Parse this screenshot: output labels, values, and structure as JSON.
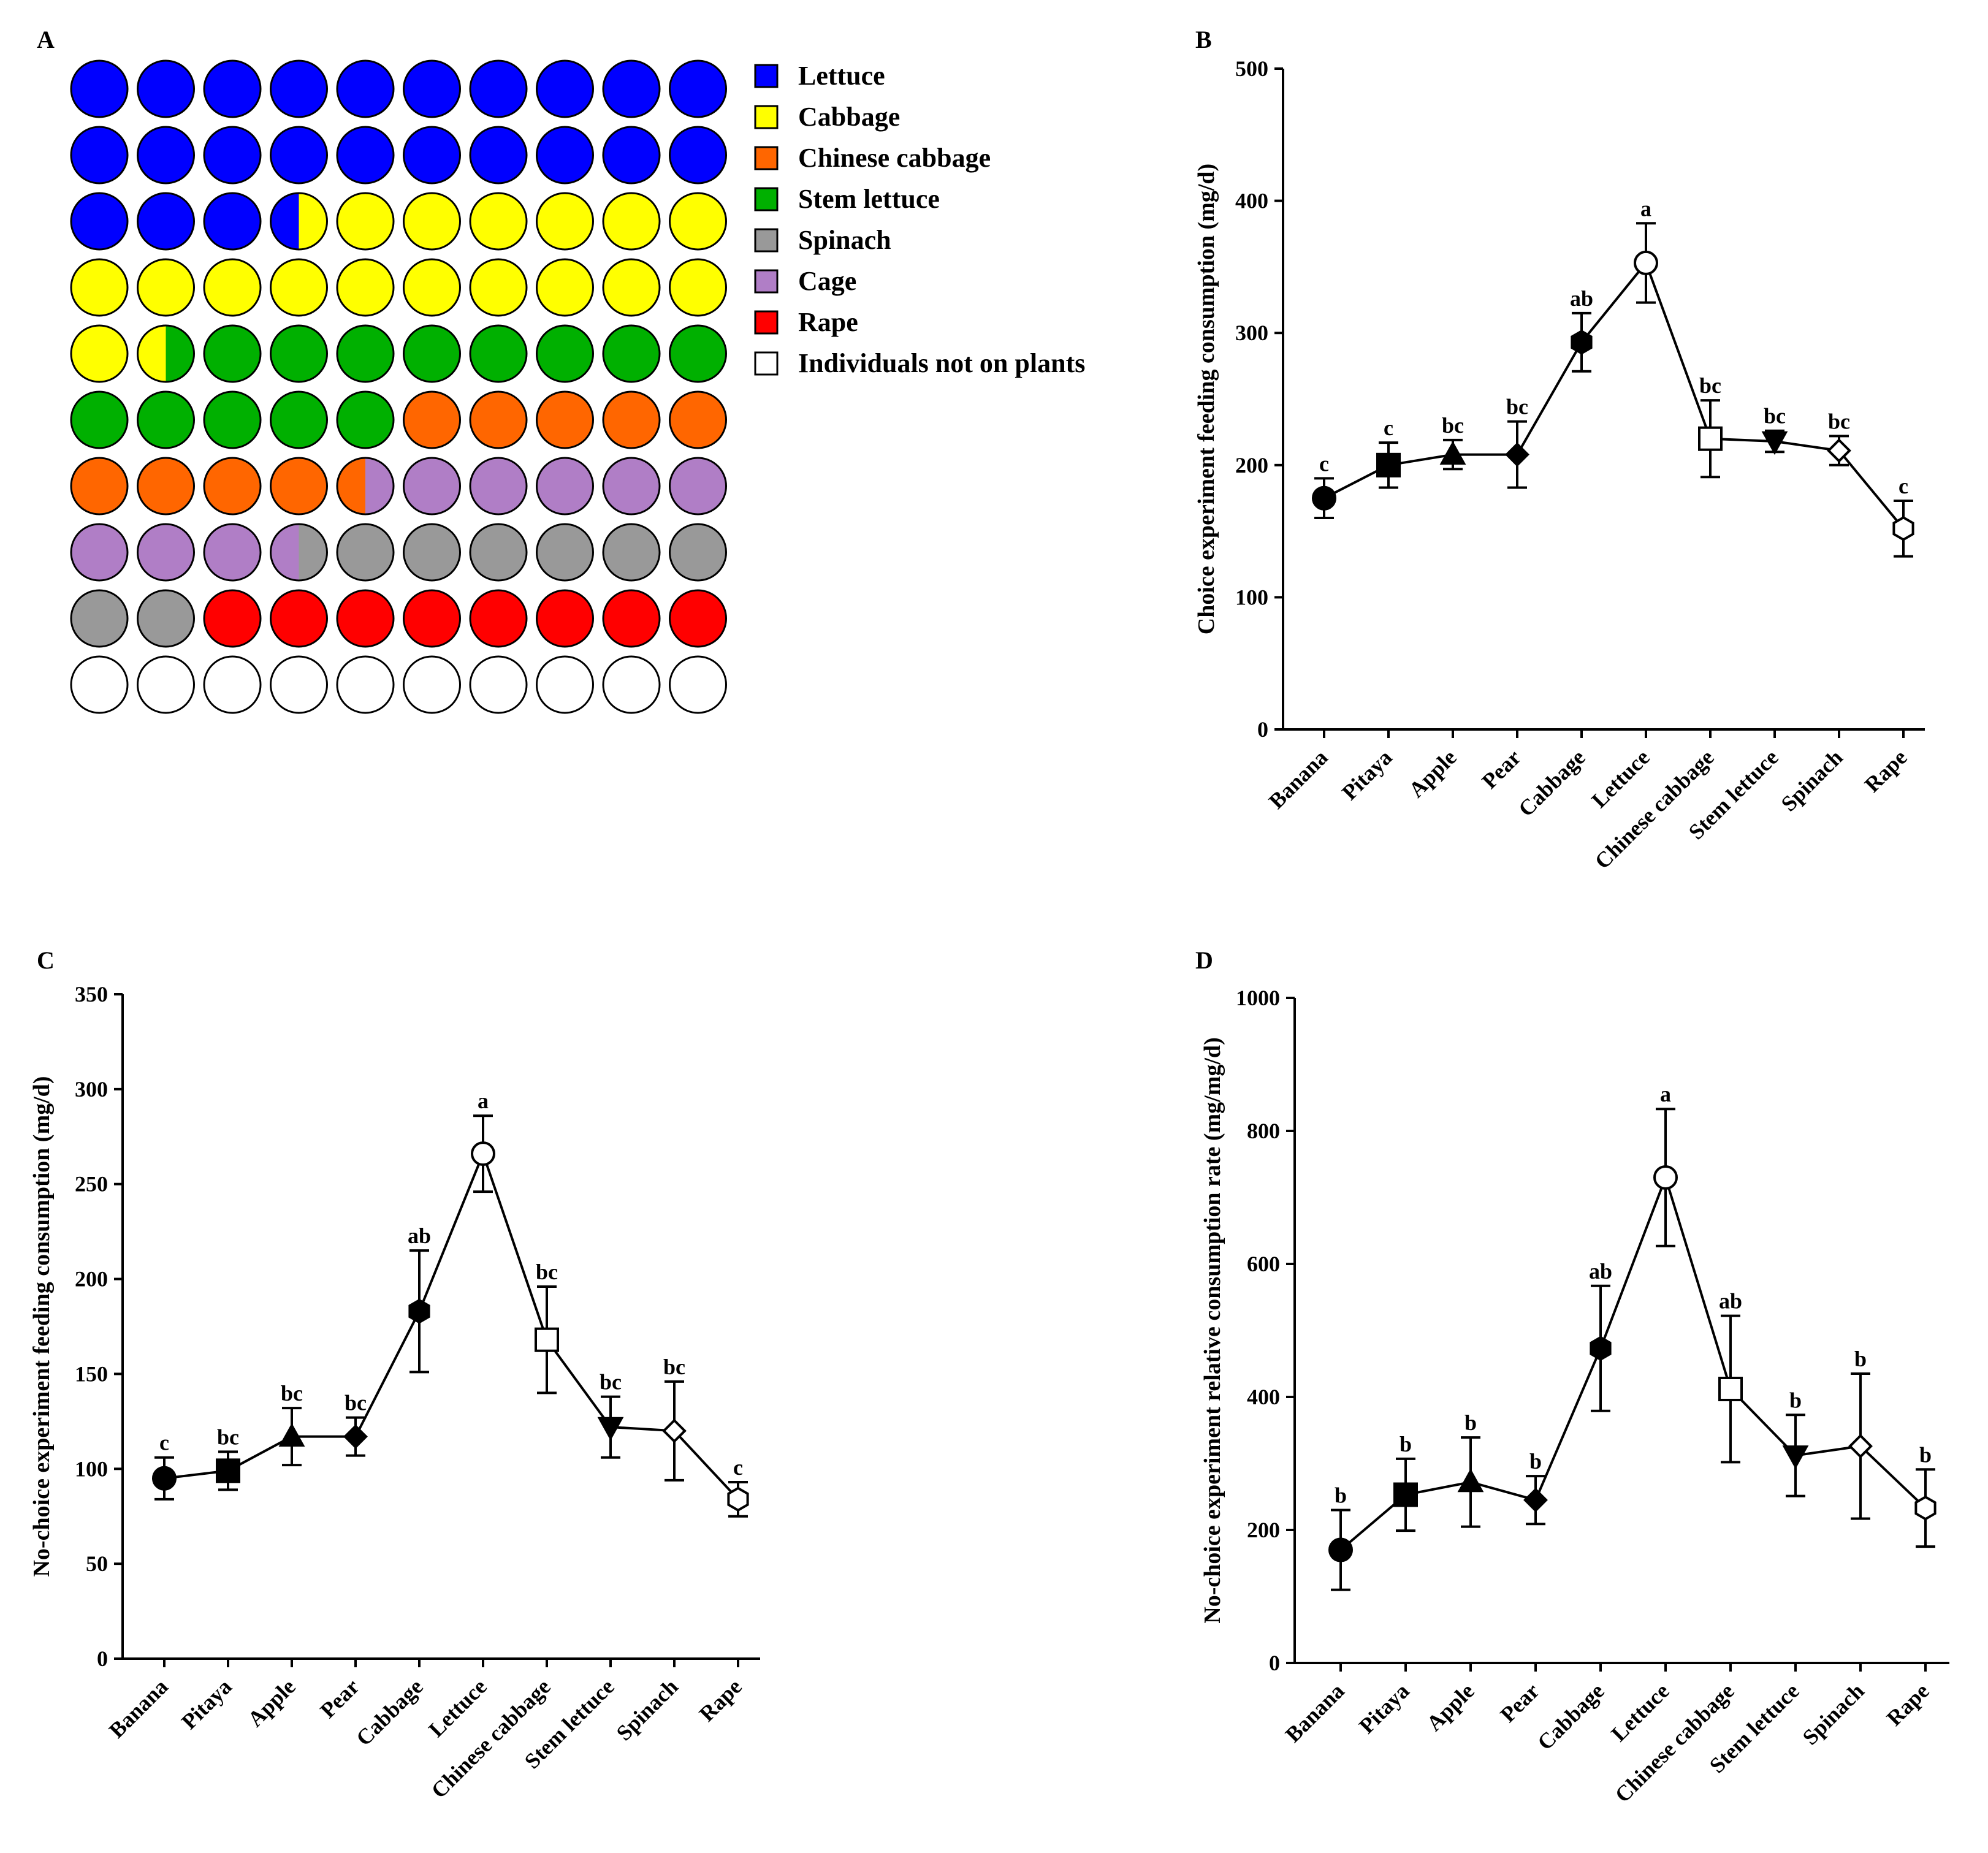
{
  "panelA": {
    "label": "A",
    "legend": [
      {
        "key": "lettuce",
        "text": "Lettuce",
        "color": "#0000ff"
      },
      {
        "key": "cabbage",
        "text": "Cabbage",
        "color": "#ffff00"
      },
      {
        "key": "chinese_cabbage",
        "text": "Chinese cabbage",
        "color": "#ff6600"
      },
      {
        "key": "stem_lettuce",
        "text": "Stem lettuce",
        "color": "#00b000"
      },
      {
        "key": "spinach",
        "text": "Spinach",
        "color": "#999999"
      },
      {
        "key": "cage",
        "text": "Cage",
        "color": "#b07ec6"
      },
      {
        "key": "rape",
        "text": "Rape",
        "color": "#ff0000"
      },
      {
        "key": "none",
        "text": "Individuals not on plants",
        "color": "#ffffff"
      }
    ],
    "grid": [
      [
        "lettuce",
        "lettuce",
        "lettuce",
        "lettuce",
        "lettuce",
        "lettuce",
        "lettuce",
        "lettuce",
        "lettuce",
        "lettuce"
      ],
      [
        "lettuce",
        "lettuce",
        "lettuce",
        "lettuce",
        "lettuce",
        "lettuce",
        "lettuce",
        "lettuce",
        "lettuce",
        "lettuce"
      ],
      [
        "lettuce",
        "lettuce",
        "lettuce",
        "lettuce|cabbage",
        "cabbage",
        "cabbage",
        "cabbage",
        "cabbage",
        "cabbage",
        "cabbage"
      ],
      [
        "cabbage",
        "cabbage",
        "cabbage",
        "cabbage",
        "cabbage",
        "cabbage",
        "cabbage",
        "cabbage",
        "cabbage",
        "cabbage"
      ],
      [
        "cabbage",
        "cabbage|stem_lettuce",
        "stem_lettuce",
        "stem_lettuce",
        "stem_lettuce",
        "stem_lettuce",
        "stem_lettuce",
        "stem_lettuce",
        "stem_lettuce",
        "stem_lettuce"
      ],
      [
        "stem_lettuce",
        "stem_lettuce",
        "stem_lettuce",
        "stem_lettuce",
        "stem_lettuce",
        "chinese_cabbage",
        "chinese_cabbage",
        "chinese_cabbage",
        "chinese_cabbage",
        "chinese_cabbage"
      ],
      [
        "chinese_cabbage",
        "chinese_cabbage",
        "chinese_cabbage",
        "chinese_cabbage",
        "chinese_cabbage|cage",
        "cage",
        "cage",
        "cage",
        "cage",
        "cage"
      ],
      [
        "cage",
        "cage",
        "cage",
        "cage|spinach",
        "spinach",
        "spinach",
        "spinach",
        "spinach",
        "spinach",
        "spinach"
      ],
      [
        "spinach",
        "spinach",
        "rape",
        "rape",
        "rape",
        "rape",
        "rape",
        "rape",
        "rape",
        "rape"
      ],
      [
        "none",
        "none",
        "none",
        "none",
        "none",
        "none",
        "none",
        "none",
        "none",
        "none"
      ]
    ]
  },
  "chart_data": [
    {
      "id": "B",
      "type": "line",
      "panel_label": "B",
      "ylabel": "Choice experiment feeding consumption (mg/d)",
      "xlabel": "",
      "ylim": [
        0,
        500
      ],
      "yticks": [
        0,
        100,
        200,
        300,
        400,
        500
      ],
      "categories": [
        "Banana",
        "Pitaya",
        "Apple",
        "Pear",
        "Cabbage",
        "Lettuce",
        "Chinese cabbage",
        "Stem lettuce",
        "Spinach",
        "Rape"
      ],
      "markers": [
        "circle-filled",
        "square-filled",
        "triangle-filled",
        "diamond-filled",
        "hexagon-filled",
        "circle-open",
        "square-open",
        "triangle-down-filled",
        "diamond-open",
        "hexagon-open"
      ],
      "values": [
        175,
        200,
        208,
        208,
        293,
        353,
        220,
        218,
        211,
        152
      ],
      "errors": [
        15,
        17,
        11,
        25,
        22,
        30,
        29,
        8,
        11,
        21
      ],
      "significance": [
        "c",
        "c",
        "bc",
        "bc",
        "ab",
        "a",
        "bc",
        "bc",
        "bc",
        "c"
      ]
    },
    {
      "id": "C",
      "type": "line",
      "panel_label": "C",
      "ylabel": "No-choice experiment feeding consumption (mg/d)",
      "xlabel": "",
      "ylim": [
        0,
        350
      ],
      "yticks": [
        0,
        50,
        100,
        150,
        200,
        250,
        300,
        350
      ],
      "categories": [
        "Banana",
        "Pitaya",
        "Apple",
        "Pear",
        "Cabbage",
        "Lettuce",
        "Chinese cabbage",
        "Stem lettuce",
        "Spinach",
        "Rape"
      ],
      "markers": [
        "circle-filled",
        "square-filled",
        "triangle-filled",
        "diamond-filled",
        "hexagon-filled",
        "circle-open",
        "square-open",
        "triangle-down-filled",
        "diamond-open",
        "hexagon-open"
      ],
      "values": [
        95,
        99,
        117,
        117,
        183,
        266,
        168,
        122,
        120,
        84
      ],
      "errors": [
        11,
        10,
        15,
        10,
        32,
        20,
        28,
        16,
        26,
        9
      ],
      "significance": [
        "c",
        "bc",
        "bc",
        "bc",
        "ab",
        "a",
        "bc",
        "bc",
        "bc",
        "c"
      ]
    },
    {
      "id": "D",
      "type": "line",
      "panel_label": "D",
      "ylabel": "No-choice experiment relative consumption rate (mg/mg/d)",
      "xlabel": "",
      "ylim": [
        0,
        1000
      ],
      "yticks": [
        0,
        200,
        400,
        600,
        800,
        1000
      ],
      "categories": [
        "Banana",
        "Pitaya",
        "Apple",
        "Pear",
        "Cabbage",
        "Lettuce",
        "Chinese cabbage",
        "Stem lettuce",
        "Spinach",
        "Rape"
      ],
      "markers": [
        "circle-filled",
        "square-filled",
        "triangle-filled",
        "diamond-filled",
        "hexagon-filled",
        "circle-open",
        "square-open",
        "triangle-down-filled",
        "diamond-open",
        "hexagon-open"
      ],
      "values": [
        170,
        253,
        272,
        245,
        473,
        730,
        412,
        312,
        326,
        233
      ],
      "errors": [
        60,
        54,
        67,
        36,
        94,
        103,
        110,
        61,
        109,
        58
      ],
      "significance": [
        "b",
        "b",
        "b",
        "b",
        "ab",
        "a",
        "ab",
        "b",
        "b",
        "b"
      ]
    }
  ]
}
